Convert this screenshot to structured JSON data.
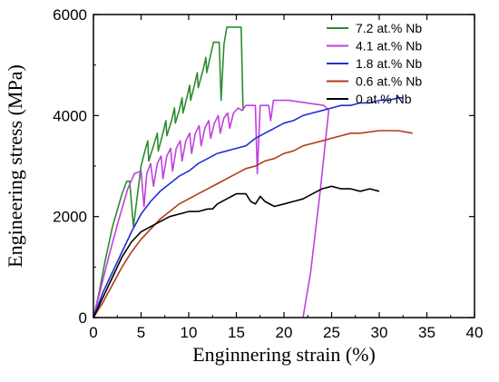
{
  "chart_data": {
    "type": "line",
    "xlabel": "Enginnering strain (%)",
    "ylabel": "Engineering stress (MPa)",
    "xlim": [
      0,
      40
    ],
    "ylim": [
      0,
      6000
    ],
    "x_ticks": [
      0,
      5,
      10,
      15,
      20,
      25,
      30,
      35,
      40
    ],
    "y_ticks": [
      0,
      2000,
      4000,
      6000
    ],
    "grid": false,
    "legend_position": "top-right",
    "series": [
      {
        "name": "7.2 at.% Nb",
        "color": "#2e8b2e",
        "points": [
          [
            0,
            0
          ],
          [
            0.6,
            500
          ],
          [
            1.2,
            1100
          ],
          [
            2,
            1800
          ],
          [
            3,
            2450
          ],
          [
            3.5,
            2700
          ],
          [
            3.8,
            2700
          ],
          [
            4.2,
            1800
          ],
          [
            4.6,
            2400
          ],
          [
            5,
            3000
          ],
          [
            5.4,
            3300
          ],
          [
            5.7,
            3500
          ],
          [
            5.8,
            3100
          ],
          [
            6.3,
            3400
          ],
          [
            6.7,
            3650
          ],
          [
            6.8,
            3300
          ],
          [
            7.3,
            3650
          ],
          [
            7.6,
            3900
          ],
          [
            7.7,
            3600
          ],
          [
            8.2,
            3900
          ],
          [
            8.5,
            4150
          ],
          [
            8.6,
            3850
          ],
          [
            9,
            4100
          ],
          [
            9.3,
            4350
          ],
          [
            9.4,
            4050
          ],
          [
            9.8,
            4350
          ],
          [
            10.1,
            4600
          ],
          [
            10.2,
            4300
          ],
          [
            10.6,
            4600
          ],
          [
            10.9,
            4850
          ],
          [
            11,
            4550
          ],
          [
            11.5,
            4900
          ],
          [
            11.8,
            5150
          ],
          [
            11.9,
            4850
          ],
          [
            12.3,
            5200
          ],
          [
            12.6,
            5450
          ],
          [
            13.2,
            5450
          ],
          [
            13.4,
            4300
          ],
          [
            13.7,
            5400
          ],
          [
            14,
            5750
          ],
          [
            15.5,
            5750
          ],
          [
            15.7,
            4100
          ]
        ]
      },
      {
        "name": "4.1 at.% Nb",
        "color": "#c040e0",
        "points": [
          [
            0,
            0
          ],
          [
            0.8,
            600
          ],
          [
            1.6,
            1200
          ],
          [
            2.6,
            1900
          ],
          [
            3.6,
            2550
          ],
          [
            4.3,
            2850
          ],
          [
            5,
            2900
          ],
          [
            5.3,
            2200
          ],
          [
            5.6,
            2850
          ],
          [
            6,
            3050
          ],
          [
            6.3,
            2600
          ],
          [
            6.7,
            3050
          ],
          [
            7.1,
            3200
          ],
          [
            7.3,
            2750
          ],
          [
            7.7,
            3200
          ],
          [
            8.1,
            3350
          ],
          [
            8.3,
            2900
          ],
          [
            8.7,
            3350
          ],
          [
            9.1,
            3500
          ],
          [
            9.3,
            3100
          ],
          [
            9.7,
            3500
          ],
          [
            10.1,
            3650
          ],
          [
            10.3,
            3250
          ],
          [
            10.7,
            3650
          ],
          [
            11.1,
            3800
          ],
          [
            11.3,
            3400
          ],
          [
            11.7,
            3750
          ],
          [
            12.1,
            3900
          ],
          [
            12.3,
            3550
          ],
          [
            12.7,
            3850
          ],
          [
            13.1,
            4000
          ],
          [
            13.3,
            3650
          ],
          [
            13.7,
            3950
          ],
          [
            14.1,
            4050
          ],
          [
            14.3,
            3750
          ],
          [
            14.7,
            4050
          ],
          [
            15.2,
            4150
          ],
          [
            15.6,
            4100
          ],
          [
            16,
            4200
          ],
          [
            17,
            4200
          ],
          [
            17.2,
            2850
          ],
          [
            17.5,
            4200
          ],
          [
            18.4,
            4200
          ],
          [
            18.6,
            3900
          ],
          [
            18.9,
            4300
          ],
          [
            20.5,
            4300
          ],
          [
            24.2,
            4200
          ],
          [
            24.7,
            4100
          ],
          [
            23.8,
            2500
          ],
          [
            22.8,
            900
          ],
          [
            22,
            0
          ]
        ]
      },
      {
        "name": "1.8 at.% Nb",
        "color": "#1f2fd6",
        "points": [
          [
            0,
            0
          ],
          [
            1,
            500
          ],
          [
            2,
            900
          ],
          [
            3,
            1300
          ],
          [
            4,
            1700
          ],
          [
            5,
            2050
          ],
          [
            6,
            2300
          ],
          [
            7,
            2500
          ],
          [
            8,
            2650
          ],
          [
            9,
            2800
          ],
          [
            10,
            2900
          ],
          [
            11,
            3050
          ],
          [
            12,
            3150
          ],
          [
            13,
            3250
          ],
          [
            14,
            3300
          ],
          [
            15,
            3350
          ],
          [
            16,
            3400
          ],
          [
            17,
            3550
          ],
          [
            18,
            3650
          ],
          [
            19,
            3750
          ],
          [
            20,
            3850
          ],
          [
            21,
            3900
          ],
          [
            22,
            4000
          ],
          [
            23,
            4050
          ],
          [
            24,
            4100
          ],
          [
            25,
            4150
          ],
          [
            26,
            4200
          ],
          [
            27,
            4200
          ],
          [
            28,
            4250
          ],
          [
            29,
            4250
          ],
          [
            30,
            4300
          ],
          [
            31,
            4300
          ],
          [
            32,
            4350
          ],
          [
            32.5,
            4350
          ]
        ]
      },
      {
        "name": "0.6 at.% Nb",
        "color": "#b23a1a",
        "points": [
          [
            0,
            0
          ],
          [
            1,
            300
          ],
          [
            2,
            650
          ],
          [
            3,
            1000
          ],
          [
            4,
            1300
          ],
          [
            5,
            1550
          ],
          [
            6,
            1750
          ],
          [
            7,
            1950
          ],
          [
            8,
            2100
          ],
          [
            9,
            2250
          ],
          [
            10,
            2350
          ],
          [
            11,
            2450
          ],
          [
            12,
            2550
          ],
          [
            13,
            2650
          ],
          [
            14,
            2750
          ],
          [
            15,
            2850
          ],
          [
            16,
            2950
          ],
          [
            17,
            3000
          ],
          [
            18,
            3100
          ],
          [
            19,
            3150
          ],
          [
            20,
            3250
          ],
          [
            21,
            3300
          ],
          [
            22,
            3400
          ],
          [
            23,
            3450
          ],
          [
            24,
            3500
          ],
          [
            25,
            3550
          ],
          [
            26,
            3600
          ],
          [
            27,
            3650
          ],
          [
            28,
            3650
          ],
          [
            30,
            3700
          ],
          [
            32,
            3700
          ],
          [
            33.5,
            3650
          ]
        ]
      },
      {
        "name": "0 at.% Nb",
        "color": "#000000",
        "points": [
          [
            0,
            0
          ],
          [
            1,
            400
          ],
          [
            2,
            800
          ],
          [
            3,
            1200
          ],
          [
            4,
            1500
          ],
          [
            5,
            1700
          ],
          [
            6,
            1800
          ],
          [
            7,
            1900
          ],
          [
            8,
            2000
          ],
          [
            9,
            2050
          ],
          [
            10,
            2100
          ],
          [
            11,
            2100
          ],
          [
            12,
            2150
          ],
          [
            12.5,
            2150
          ],
          [
            13,
            2250
          ],
          [
            14,
            2350
          ],
          [
            15,
            2450
          ],
          [
            16,
            2450
          ],
          [
            16.5,
            2300
          ],
          [
            17,
            2250
          ],
          [
            17.5,
            2400
          ],
          [
            18,
            2300
          ],
          [
            19,
            2200
          ],
          [
            20,
            2250
          ],
          [
            21,
            2300
          ],
          [
            22,
            2350
          ],
          [
            23,
            2450
          ],
          [
            24,
            2550
          ],
          [
            25,
            2600
          ],
          [
            26,
            2550
          ],
          [
            27,
            2550
          ],
          [
            28,
            2500
          ],
          [
            29,
            2550
          ],
          [
            30,
            2500
          ]
        ]
      }
    ]
  }
}
